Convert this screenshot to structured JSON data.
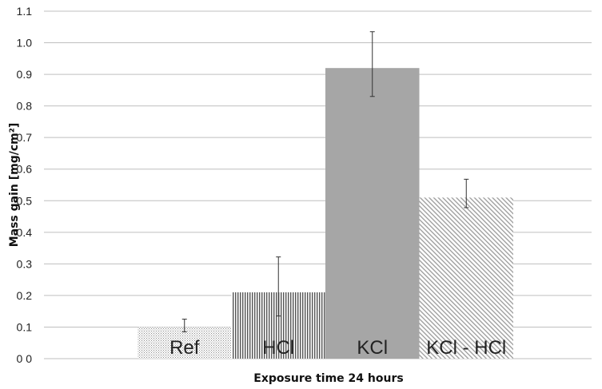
{
  "chart_data": {
    "type": "bar",
    "title": "",
    "xlabel": "Exposure time 24 hours",
    "ylabel": "Mass gain [mg/cm²]",
    "ylim": [
      0,
      1.1
    ],
    "yticks": [
      "0 0",
      "0.1",
      "0.2",
      "0.3",
      "0.4",
      "0.5",
      "0.6",
      "0.7",
      "0.8",
      "0.9",
      "1.0",
      "1.1"
    ],
    "grid": true,
    "categories": [
      "Ref",
      "HCl",
      "KCl",
      "KCl - HCl"
    ],
    "values": [
      0.1,
      0.21,
      0.92,
      0.51
    ],
    "error_low": [
      0.085,
      0.135,
      0.83,
      0.478
    ],
    "error_high": [
      0.125,
      0.322,
      1.035,
      0.568
    ],
    "fills": [
      "dots",
      "vertical-lines",
      "solid-gray",
      "diagonal-lines"
    ],
    "colors": {
      "solid": "#a6a6a6",
      "pattern": "#8c8c8c",
      "grid": "#bfbfbf",
      "error": "#333333"
    }
  }
}
